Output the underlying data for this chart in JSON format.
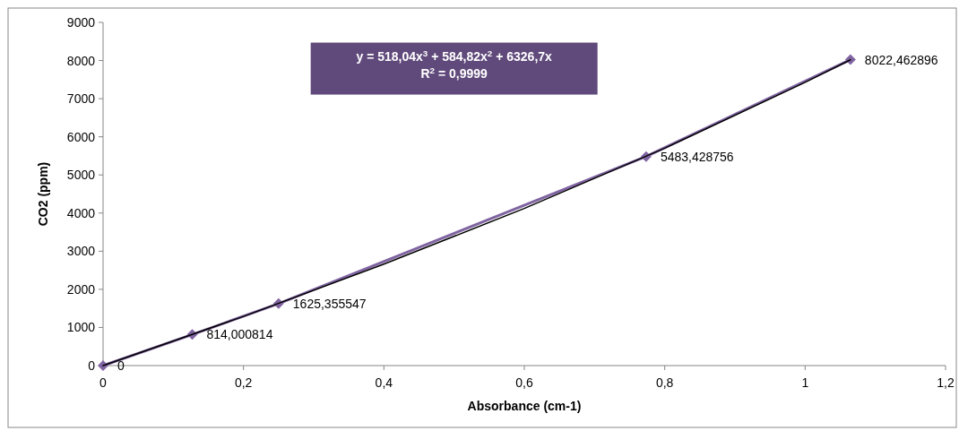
{
  "chart_data": {
    "type": "line",
    "xlabel": "Absorbance  (cm-1)",
    "ylabel": "CO2 (ppm)",
    "xlim": [
      0,
      1.2
    ],
    "xticks": [
      0,
      {
        "value": 0.2,
        "label": "0,2"
      },
      {
        "value": 0.4,
        "label": "0,4"
      },
      {
        "value": 0.6,
        "label": "0,6"
      },
      {
        "value": 0.8,
        "label": "0,8"
      },
      1,
      {
        "value": 1.2,
        "label": "1,2"
      }
    ],
    "ylim": [
      0,
      9000
    ],
    "yticks": [
      0,
      1000,
      2000,
      3000,
      4000,
      5000,
      6000,
      7000,
      8000,
      9000
    ],
    "marker": "diamond",
    "line_style": "solid",
    "grid": false,
    "series": [
      {
        "color": "#8064a2",
        "x": [
          0,
          0.127,
          0.25,
          0.7735,
          1.0645
        ],
        "values": [
          0,
          814.000814,
          1625.355547,
          5483.428756,
          8022.462896
        ],
        "value_labels": [
          "0",
          "814,000814",
          "1625,355547",
          "5483,428756",
          "8022,462896"
        ]
      },
      {
        "type": "line",
        "marker": "none",
        "color": "#000000",
        "x": [
          0,
          0.2,
          0.4,
          0.6,
          0.8,
          1.0,
          1.0645
        ],
        "values": [
          0,
          1290,
          2660,
          4120,
          5700,
          7430,
          8020
        ]
      }
    ],
    "annotations": [
      "y = 518,04x$^{3}$ + 584,82x$^{2}$ + 6326,7x",
      "R$^{2}$ = 0,9999"
    ]
  }
}
